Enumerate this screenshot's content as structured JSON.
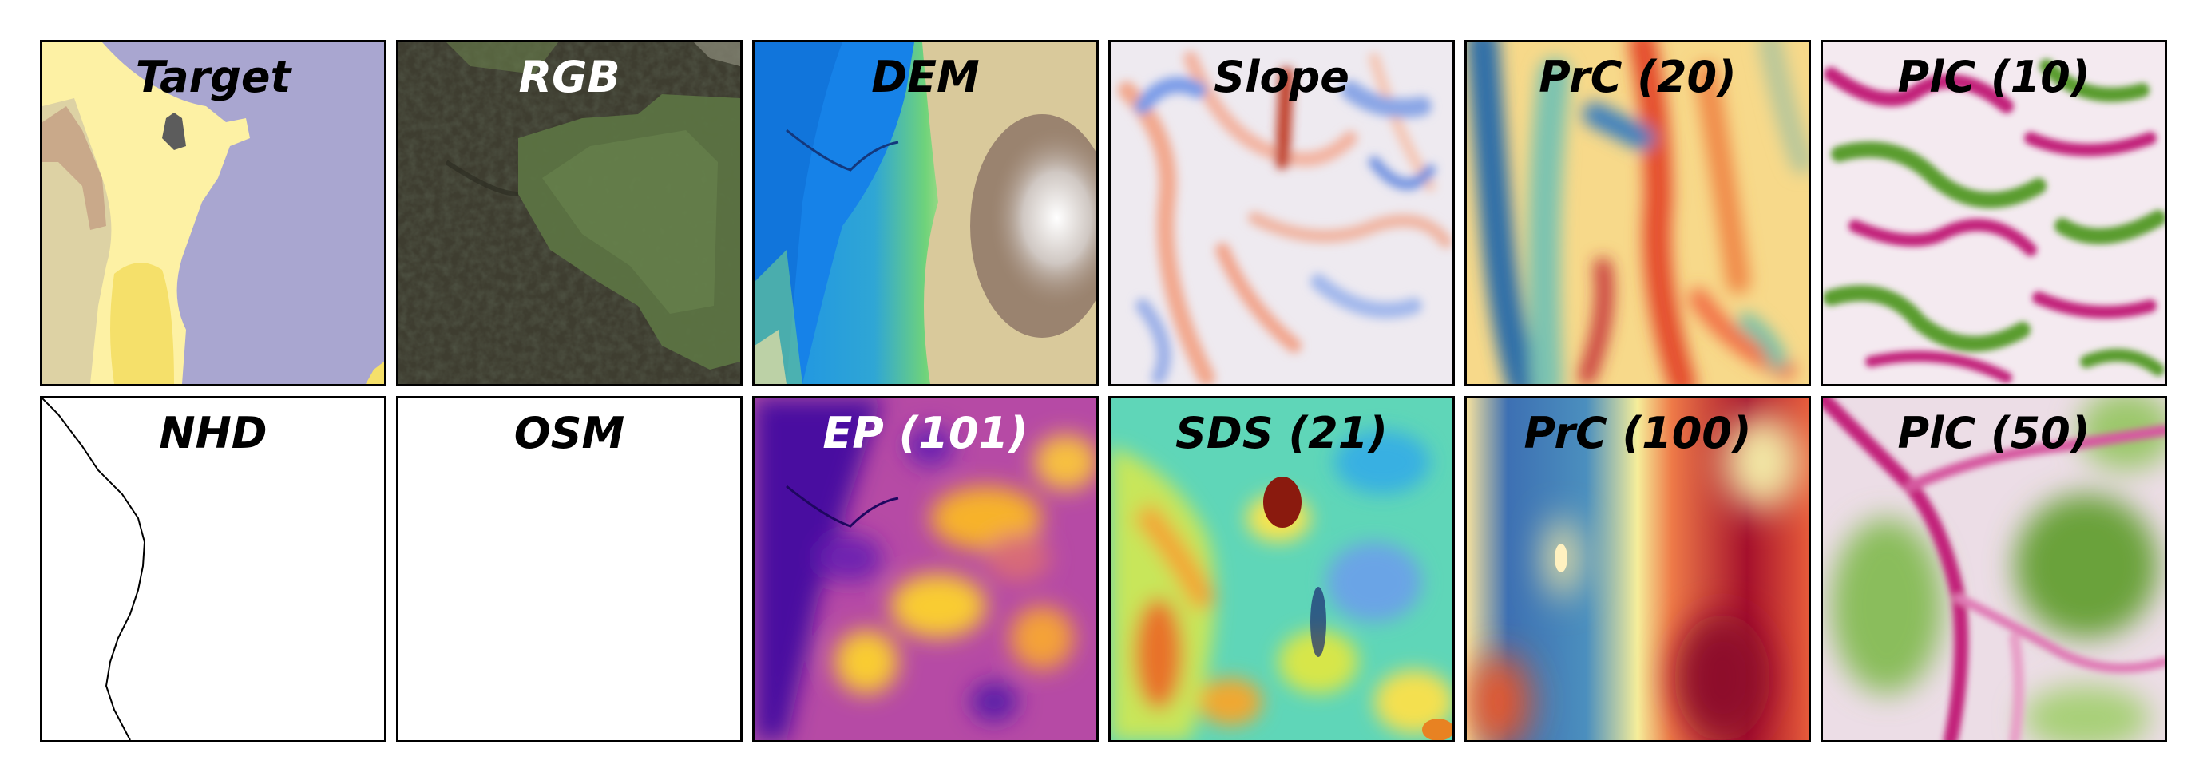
{
  "panels": {
    "target": {
      "title": "Target"
    },
    "rgb": {
      "title": "RGB"
    },
    "dem": {
      "title": "DEM"
    },
    "slope": {
      "title": "Slope"
    },
    "prc20": {
      "title": "PrC (20)"
    },
    "plc10": {
      "title": "PlC (10)"
    },
    "nhd": {
      "title": "NHD"
    },
    "osm": {
      "title": "OSM"
    },
    "ep": {
      "title": "EP (101)"
    },
    "sds": {
      "title": "SDS (21)"
    },
    "prc100": {
      "title": "PrC (100)"
    },
    "plc50": {
      "title": "PlC (50)"
    }
  },
  "colors": {
    "target_background": "#a9a6d0",
    "target_light_yellow": "#fdf1a4",
    "target_beige": "#ddd2a4",
    "target_brown": "#c9a98a",
    "target_yellow": "#f5e06a",
    "target_dark": "#5c5c5c",
    "nhd_line": "#000000"
  }
}
